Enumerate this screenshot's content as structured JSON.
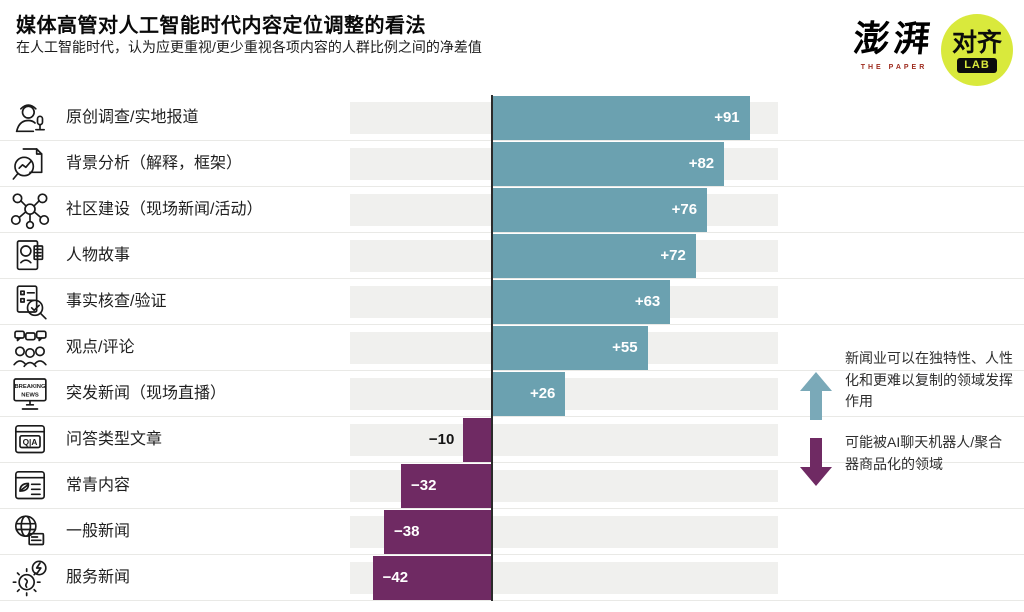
{
  "header": {
    "title": "媒体高管对人工智能时代内容定位调整的看法",
    "subtitle": "在人工智能时代，认为应更重视/更少重视各项内容的人群比例之间的净差值"
  },
  "logos": {
    "the_paper": {
      "zh": "澎湃",
      "en": "THE PAPER"
    },
    "duiqi_lab": {
      "zh": "对齐",
      "lab": "LAB",
      "bg_color": "#d9e93c",
      "text_color": "#d9e93c"
    }
  },
  "chart_data": {
    "type": "bar",
    "orientation": "horizontal",
    "title": "媒体高管对人工智能时代内容定位调整的看法",
    "subtitle": "在人工智能时代，认为应更重视/更少重视各项内容的人群比例之间的净差值",
    "categories": [
      "原创调查/实地报道",
      "背景分析（解释，框架）",
      "社区建设（现场新闻/活动）",
      "人物故事",
      "事实核查/验证",
      "观点/评论",
      "突发新闻（现场直播）",
      "问答类型文章",
      "常青内容",
      "一般新闻",
      "服务新闻"
    ],
    "values": [
      91,
      82,
      76,
      72,
      63,
      55,
      26,
      -10,
      -32,
      -38,
      -42
    ],
    "value_labels": [
      "+91",
      "+82",
      "+76",
      "+72",
      "+63",
      "+55",
      "+26",
      "−10",
      "−32",
      "−38",
      "−42"
    ],
    "icons": [
      "reporter-icon",
      "background-analysis-icon",
      "community-icon",
      "people-story-icon",
      "fact-check-icon",
      "opinion-icon",
      "breaking-news-icon",
      "qa-icon",
      "evergreen-icon",
      "general-news-icon",
      "service-news-icon"
    ],
    "xlim": [
      -50,
      101
    ],
    "grid": false,
    "colors": {
      "positive": "#6ba1b0",
      "negative": "#6f2a63",
      "track": "#f0f0ee",
      "baseline": "#2b2b2b"
    }
  },
  "annotations": {
    "positive": {
      "direction": "up",
      "color": "#7aa9b8",
      "text": "新闻业可以在独特性、人性化和更难以复制的领域发挥作用"
    },
    "negative": {
      "direction": "down",
      "color": "#6f2a63",
      "text": "可能被AI聊天机器人/聚合器商品化的领域"
    }
  }
}
